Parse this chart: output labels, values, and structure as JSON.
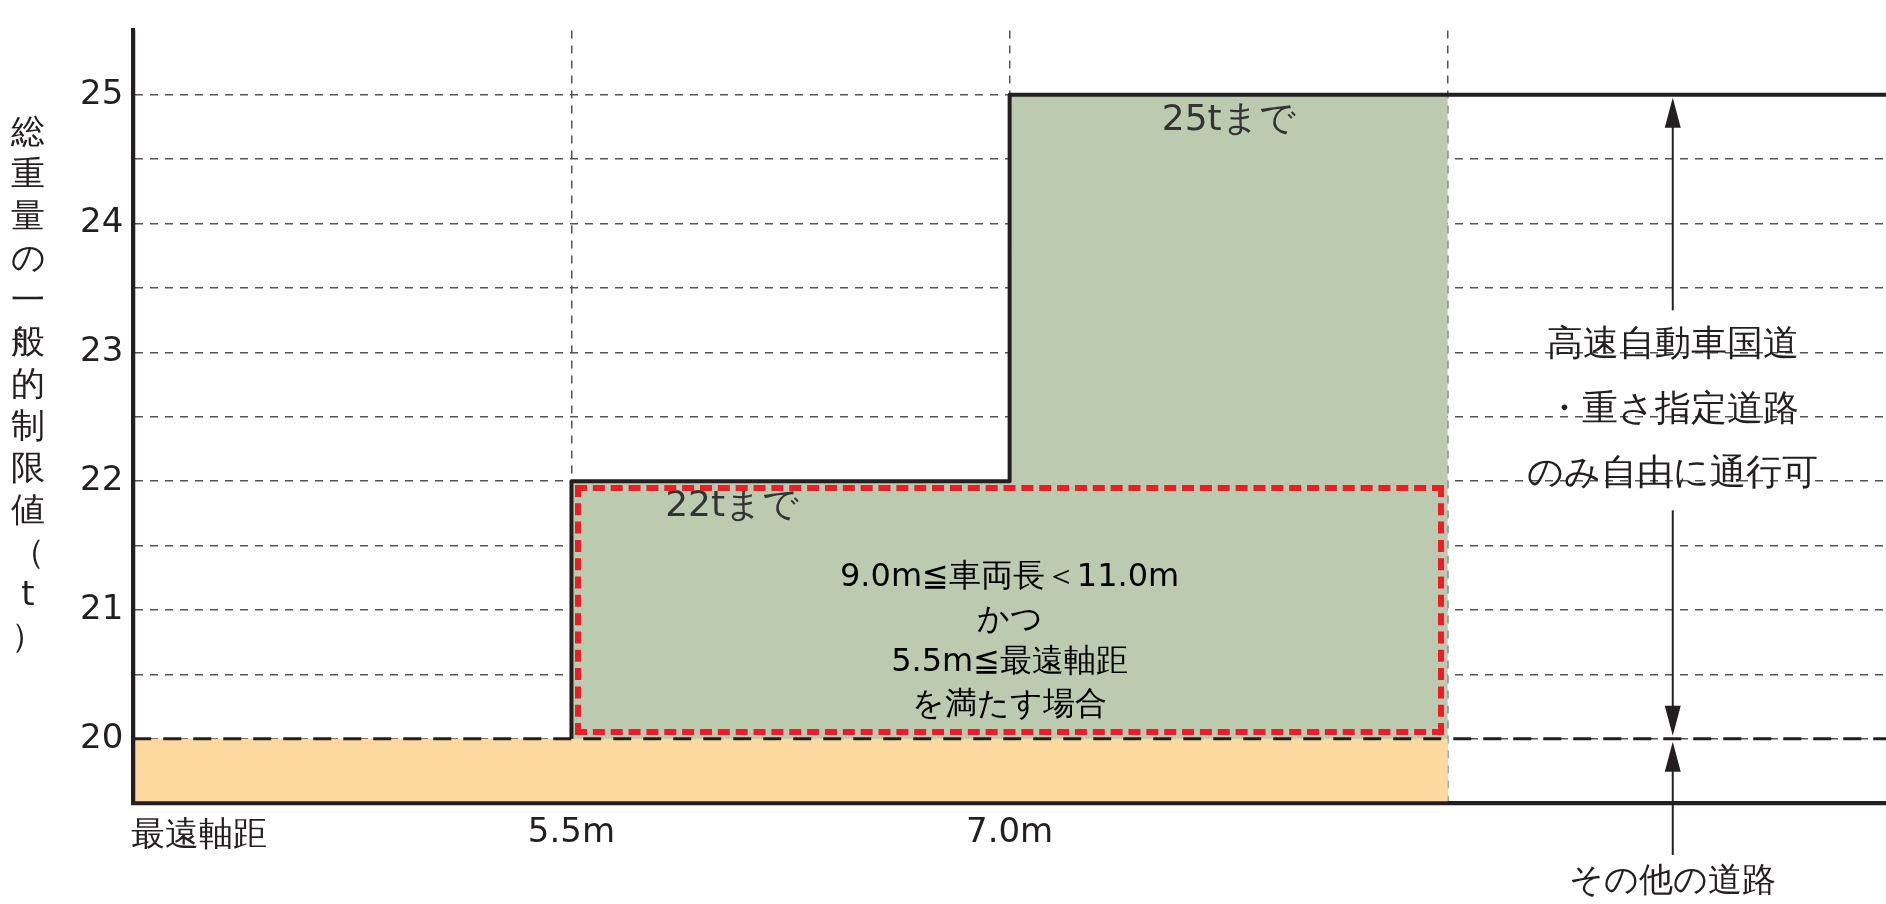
{
  "chart_data": {
    "type": "line",
    "ylabel": "総重量の一般的制限値（t）",
    "xlabel": "最遠軸距",
    "xlim": [
      4,
      10
    ],
    "ylim": [
      19.5,
      25.5
    ],
    "xticks": [
      {
        "value": 5.5,
        "label": "5.5m"
      },
      {
        "value": 7,
        "label": "7.0m"
      },
      {
        "value": 8.5,
        "label": null
      }
    ],
    "yticks": [
      20,
      {
        "value": 20.5,
        "label": null
      },
      21,
      {
        "value": 21.5,
        "label": null
      },
      22,
      {
        "value": 22.5,
        "label": null
      },
      23,
      {
        "value": 23.5,
        "label": null
      },
      24,
      {
        "value": 24.5,
        "label": null
      },
      25
    ],
    "grid": true,
    "legend": false,
    "marker": "none",
    "series": [
      {
        "type": "area",
        "color": "#bccbb0",
        "x": [
          5.5,
          7,
          7,
          8.5
        ],
        "values": [
          22,
          22,
          25,
          25
        ]
      },
      {
        "type": "area",
        "color": "#fdd9a0",
        "x": [
          4,
          8.5
        ],
        "values": [
          20,
          20
        ]
      },
      {
        "color": "#231f20",
        "x": [
          5.5,
          5.5,
          7,
          7,
          10
        ],
        "values": [
          20,
          22,
          22,
          25,
          25
        ]
      }
    ],
    "ref_lines": [
      {
        "axis": "y",
        "value": 20,
        "color": "#231f20",
        "line_style": "dashed"
      }
    ],
    "annotations": [
      "25tまで",
      "22tまで",
      "9.0m≦車両長＜11.0m",
      "かつ",
      "5.5m≦最遠軸距",
      "を満たす場合",
      "高速自動車国道",
      "・重さ指定道路",
      "のみ自由に通行可",
      "その他の道路"
    ]
  }
}
